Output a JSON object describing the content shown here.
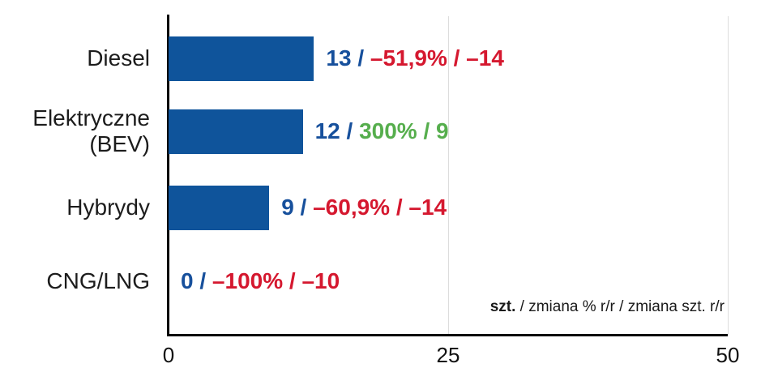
{
  "chart_data": {
    "type": "bar",
    "orientation": "horizontal",
    "title": "",
    "xlim": [
      0,
      50
    ],
    "x_ticks": [
      0,
      25,
      50
    ],
    "grid": true,
    "legend_position": "none",
    "caption": {
      "bold": "szt.",
      "rest": " / zmiana % r/r / zmiana szt. r/r"
    },
    "categories": [
      "Diesel",
      "Elektryczne (BEV)",
      "Hybrydy",
      "CNG/LNG"
    ],
    "values": [
      13,
      12,
      9,
      0
    ],
    "series": [
      {
        "name": "szt.",
        "values": [
          13,
          12,
          9,
          0
        ]
      },
      {
        "name": "zmiana % r/r",
        "values": [
          -51.9,
          300,
          -60.9,
          -100
        ]
      },
      {
        "name": "zmiana szt. r/r",
        "values": [
          -14,
          9,
          -14,
          -10
        ]
      }
    ],
    "rows": [
      {
        "category_lines": [
          "Diesel"
        ],
        "value": 13,
        "value_label": "13",
        "separator": " / ",
        "change_label": "–51,9% / –14",
        "change_pct": -51.9,
        "change_units": -14,
        "direction": "negative"
      },
      {
        "category_lines": [
          "Elektryczne",
          "(BEV)"
        ],
        "value": 12,
        "value_label": "12",
        "separator": " / ",
        "change_label": "300% / 9",
        "change_pct": 300,
        "change_units": 9,
        "direction": "positive"
      },
      {
        "category_lines": [
          "Hybrydy"
        ],
        "value": 9,
        "value_label": "9",
        "separator": " / ",
        "change_label": "–60,9% / –14",
        "change_pct": -60.9,
        "change_units": -14,
        "direction": "negative"
      },
      {
        "category_lines": [
          "CNG/LNG"
        ],
        "value": 0,
        "value_label": "0",
        "separator": " / ",
        "change_label": "–100% / –10",
        "change_pct": -100,
        "change_units": -10,
        "direction": "negative"
      }
    ],
    "colors": {
      "bar": "#0F549B",
      "value_text": "#17509C",
      "negative": "#D5182F",
      "positive": "#56AE4D",
      "axis": "#000000",
      "grid": "#DCDCDC",
      "label": "#1C1C1C"
    }
  }
}
